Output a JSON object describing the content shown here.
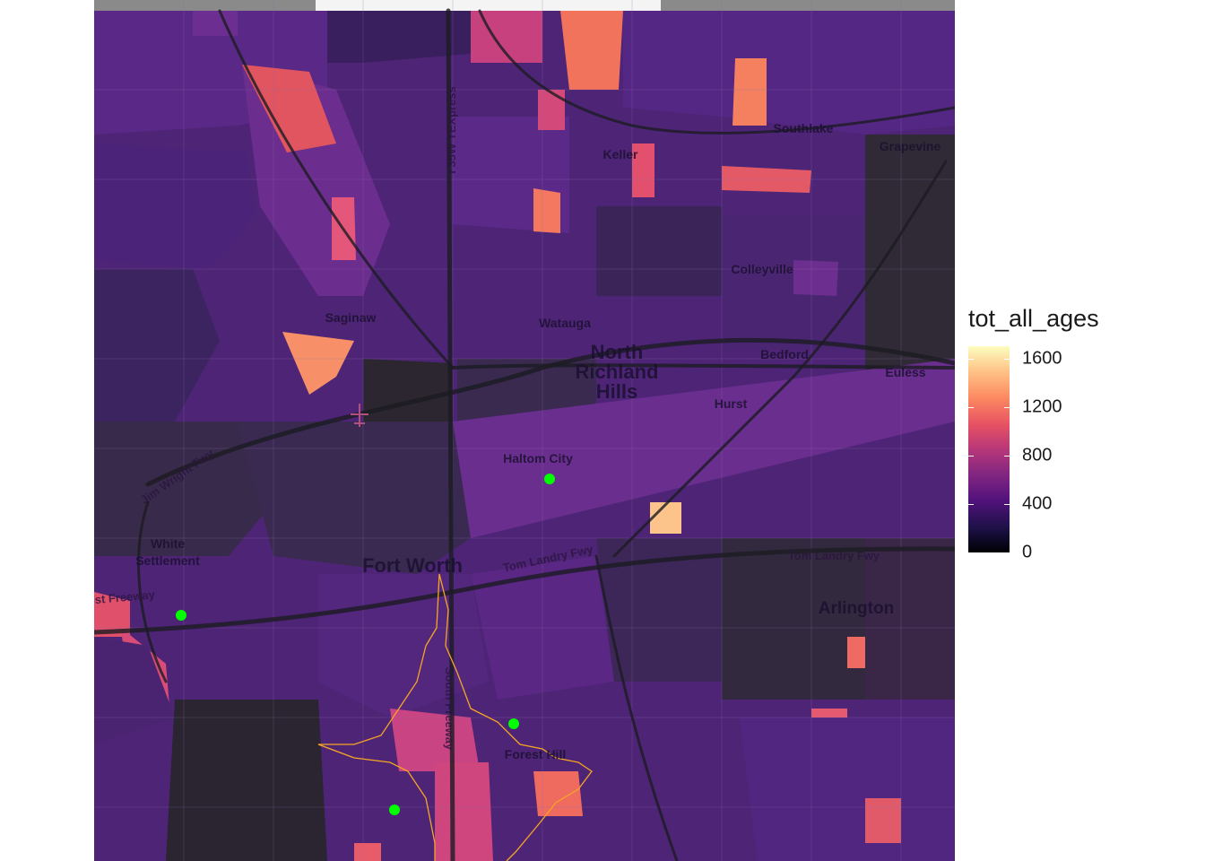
{
  "map": {
    "places": [
      {
        "name": "Keller",
        "size": "small"
      },
      {
        "name": "Southlake",
        "size": "small"
      },
      {
        "name": "Grapevine",
        "size": "small"
      },
      {
        "name": "Colleyville",
        "size": "small"
      },
      {
        "name": "Saginaw",
        "size": "small"
      },
      {
        "name": "Watauga",
        "size": "small"
      },
      {
        "name": "North Richland Hills",
        "size": "large"
      },
      {
        "name": "Bedford",
        "size": "small"
      },
      {
        "name": "Euless",
        "size": "small"
      },
      {
        "name": "Hurst",
        "size": "small"
      },
      {
        "name": "Haltom City",
        "size": "small"
      },
      {
        "name": "White Settlement",
        "size": "small"
      },
      {
        "name": "Fort Worth",
        "size": "large"
      },
      {
        "name": "Arlington",
        "size": "medium"
      },
      {
        "name": "Forest Hill",
        "size": "small"
      }
    ],
    "roads": [
      {
        "name": "I 35W TEXpress"
      },
      {
        "name": "Jim Wright Fwy"
      },
      {
        "name": "Tom Landry Fwy"
      },
      {
        "name": "Tom Landry Fwy"
      },
      {
        "name": "West Freeway"
      },
      {
        "name": "South Freeway"
      }
    ],
    "colors": {
      "highlight_points": "#00ff00",
      "boundary_outline": "#f5a623",
      "basemap": "#2a2a2e"
    },
    "icons": [
      "airport-icon"
    ]
  },
  "legend": {
    "title": "tot_all_ages",
    "scale": "magma",
    "range": [
      0,
      1700
    ],
    "breaks": [
      {
        "label": "1600",
        "value": 1600
      },
      {
        "label": "1200",
        "value": 1200
      },
      {
        "label": "800",
        "value": 800
      },
      {
        "label": "400",
        "value": 400
      },
      {
        "label": "0",
        "value": 0
      }
    ]
  }
}
